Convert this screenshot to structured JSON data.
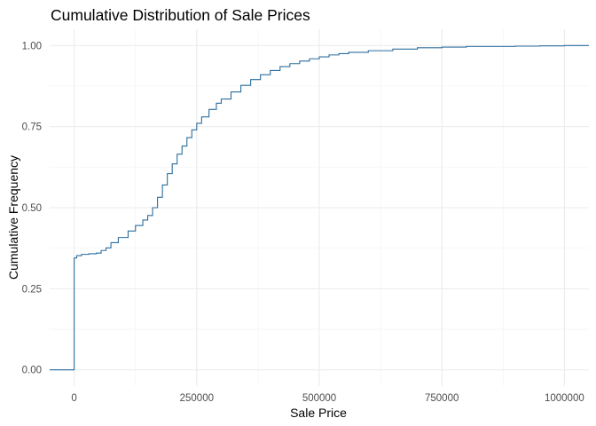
{
  "chart_data": {
    "type": "line",
    "subtype": "ecdf-step",
    "title": "Cumulative Distribution of Sale Prices",
    "xlabel": "Sale Price",
    "ylabel": "Cumulative Frequency",
    "xlim": [
      -50000,
      1050000
    ],
    "ylim": [
      -0.05,
      1.05
    ],
    "x_ticks": [
      0,
      250000,
      500000,
      750000,
      1000000
    ],
    "x_tick_labels": [
      "0",
      "250000",
      "500000",
      "750000",
      "1000000"
    ],
    "y_ticks": [
      0,
      0.25,
      0.5,
      0.75,
      1
    ],
    "y_tick_labels": [
      "0.00",
      "0.25",
      "0.50",
      "0.75",
      "1.00"
    ],
    "grid": true,
    "line_color": "#2c6e9e",
    "series": [
      {
        "x": [
          -50000,
          0,
          0,
          5000,
          15000,
          30000,
          45000,
          55000,
          65000,
          75000,
          90000,
          110000,
          125000,
          140000,
          150000,
          160000,
          170000,
          180000,
          190000,
          200000,
          210000,
          220000,
          230000,
          240000,
          250000,
          260000,
          275000,
          290000,
          300000,
          320000,
          340000,
          360000,
          380000,
          400000,
          420000,
          440000,
          460000,
          480000,
          500000,
          520000,
          540000,
          560000,
          600000,
          650000,
          700000,
          750000,
          800000,
          900000,
          950000,
          1000000,
          1050000
        ],
        "y": [
          0,
          0,
          0.345,
          0.352,
          0.356,
          0.358,
          0.36,
          0.368,
          0.376,
          0.392,
          0.408,
          0.428,
          0.445,
          0.462,
          0.476,
          0.5,
          0.532,
          0.57,
          0.605,
          0.635,
          0.665,
          0.69,
          0.716,
          0.74,
          0.76,
          0.78,
          0.803,
          0.822,
          0.835,
          0.857,
          0.877,
          0.895,
          0.91,
          0.923,
          0.935,
          0.944,
          0.952,
          0.959,
          0.965,
          0.971,
          0.975,
          0.979,
          0.984,
          0.989,
          0.993,
          0.995,
          0.997,
          0.998,
          0.999,
          1.0,
          1.0
        ]
      }
    ]
  }
}
